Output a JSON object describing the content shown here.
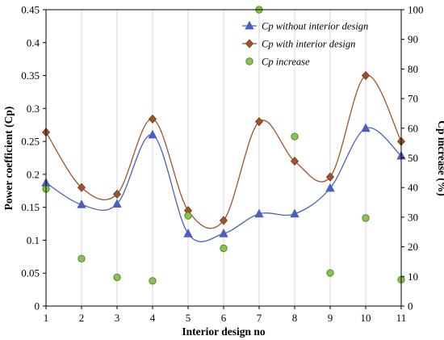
{
  "chart_data": {
    "type": "line",
    "title": "",
    "xlabel": "Interior design no",
    "ylabel": "Power coefficient (Cp)",
    "y2label": "Cp increase (%)",
    "x": [
      1,
      2,
      3,
      4,
      5,
      6,
      7,
      8,
      9,
      10,
      11
    ],
    "x_ticks": [
      "1",
      "2",
      "3",
      "4",
      "5",
      "6",
      "7",
      "8",
      "9",
      "10",
      "11"
    ],
    "ylim": [
      0,
      0.45
    ],
    "y_ticks": [
      "0",
      "0.05",
      "0.1",
      "0.15",
      "0.2",
      "0.25",
      "0.3",
      "0.35",
      "0.4",
      "0.45"
    ],
    "y2lim": [
      0,
      100
    ],
    "y2_ticks": [
      "0",
      "10",
      "20",
      "30",
      "40",
      "50",
      "60",
      "70",
      "80",
      "90",
      "100"
    ],
    "grid": "vertical",
    "legend_position": "top-right",
    "series": [
      {
        "name": "Cp without interior design",
        "axis": "left",
        "marker": "triangle",
        "color": "#4a5fc1",
        "values": [
          0.187,
          0.154,
          0.155,
          0.26,
          0.11,
          0.11,
          0.14,
          0.14,
          0.179,
          0.27,
          0.228
        ]
      },
      {
        "name": "Cp with interior design",
        "axis": "left",
        "marker": "diamond",
        "color": "#a0522d",
        "values": [
          0.264,
          0.18,
          0.17,
          0.284,
          0.145,
          0.13,
          0.28,
          0.22,
          0.196,
          0.35,
          0.25
        ]
      },
      {
        "name": "Cp increase",
        "axis": "right",
        "marker": "circle",
        "color": "#4f8f2a",
        "fill": "#8cc152",
        "values": [
          39.5,
          16.0,
          9.7,
          8.5,
          30.5,
          19.5,
          100,
          57.2,
          11.2,
          29.7,
          8.9
        ]
      }
    ]
  }
}
